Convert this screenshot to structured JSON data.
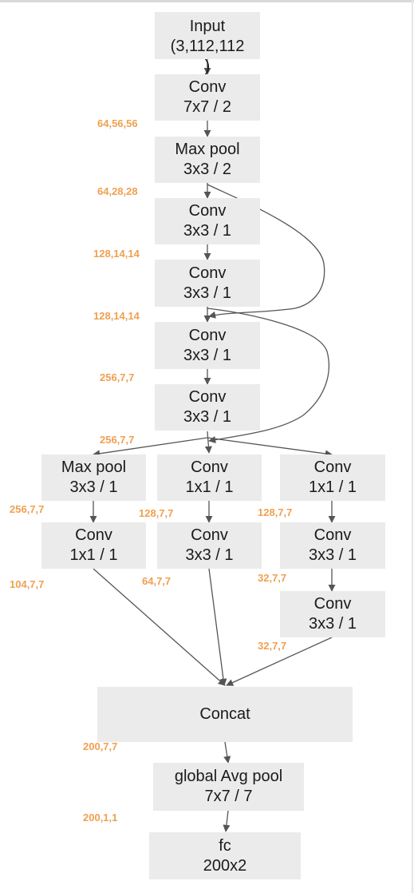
{
  "nodes": {
    "input": [
      "Input",
      "(3,112,112",
      ")"
    ],
    "conv1": [
      "Conv",
      "7x7 / 2"
    ],
    "maxpool1": [
      "Max pool",
      "3x3 / 2"
    ],
    "conv2": [
      "Conv",
      "3x3 / 1"
    ],
    "conv3": [
      "Conv",
      "3x3 / 1"
    ],
    "conv4": [
      "Conv",
      "3x3 / 1"
    ],
    "conv5": [
      "Conv",
      "3x3 / 1"
    ],
    "branch1_pool": [
      "Max pool",
      "3x3 / 1"
    ],
    "branch1_conv": [
      "Conv",
      "1x1 / 1"
    ],
    "branch2_conv1": [
      "Conv",
      "1x1 / 1"
    ],
    "branch2_conv2": [
      "Conv",
      "3x3 / 1"
    ],
    "branch3_conv1": [
      "Conv",
      "1x1 / 1"
    ],
    "branch3_conv2": [
      "Conv",
      "3x3 / 1"
    ],
    "branch3_conv3": [
      "Conv",
      "3x3 / 1"
    ],
    "concat": [
      "Concat"
    ],
    "avgpool": [
      "global Avg pool",
      "7x7 / 7"
    ],
    "fc": [
      "fc",
      "200x2"
    ]
  },
  "dims": {
    "after_conv1": "64,56,56",
    "after_maxpool1": "64,28,28",
    "after_conv2": "128,14,14",
    "after_conv3": "128,14,14",
    "after_conv4": "256,7,7",
    "after_conv5": "256,7,7",
    "after_branch1_pool": "256,7,7",
    "after_branch1_conv": "104,7,7",
    "after_branch2_conv1": "128,7,7",
    "after_branch2_conv2": "64,7,7",
    "after_branch3_conv1": "128,7,7",
    "after_branch3_conv2": "32,7,7",
    "after_branch3_conv3": "32,7,7",
    "after_concat": "200,7,7",
    "after_avgpool": "200,1,1"
  },
  "colors": {
    "node_fill": "#ebebeb",
    "dim_label": "#f0a050",
    "edge": "#555555"
  }
}
